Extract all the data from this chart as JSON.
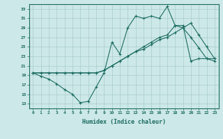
{
  "xlabel": "Humidex (Indice chaleur)",
  "bg_color": "#cde8e8",
  "grid_color": "#a8cccc",
  "line_color": "#1a6b60",
  "xlim": [
    -0.5,
    23.5
  ],
  "ylim": [
    12,
    34
  ],
  "yticks": [
    13,
    15,
    17,
    19,
    21,
    23,
    25,
    27,
    29,
    31,
    33
  ],
  "xticks": [
    0,
    1,
    2,
    3,
    4,
    5,
    6,
    7,
    8,
    9,
    10,
    11,
    12,
    13,
    14,
    15,
    16,
    17,
    18,
    19,
    20,
    21,
    22,
    23
  ],
  "line1_x": [
    0,
    1,
    2,
    3,
    4,
    5,
    6,
    7,
    8,
    9,
    10,
    11,
    12,
    13,
    14,
    15,
    16,
    17,
    18,
    19,
    20,
    21,
    22,
    23
  ],
  "line1_y": [
    19.5,
    18.8,
    18.2,
    17.2,
    16.0,
    15.0,
    13.2,
    13.5,
    16.5,
    19.5,
    26.0,
    23.5,
    29.0,
    31.5,
    31.0,
    31.5,
    31.0,
    33.5,
    29.5,
    29.0,
    27.0,
    24.8,
    22.5,
    22.0
  ],
  "line2_x": [
    0,
    1,
    2,
    3,
    4,
    5,
    6,
    7,
    8,
    9,
    10,
    11,
    12,
    13,
    14,
    15,
    16,
    17,
    18,
    19,
    20,
    21,
    22,
    23
  ],
  "line2_y": [
    19.5,
    19.5,
    19.5,
    19.5,
    19.5,
    19.5,
    19.5,
    19.5,
    19.5,
    20.0,
    21.0,
    22.0,
    23.0,
    24.0,
    25.0,
    26.0,
    27.0,
    27.5,
    29.5,
    29.5,
    22.0,
    22.5,
    22.5,
    22.5
  ],
  "line3_x": [
    0,
    1,
    2,
    3,
    4,
    5,
    6,
    7,
    8,
    9,
    10,
    11,
    12,
    13,
    14,
    15,
    16,
    17,
    18,
    19,
    20,
    21,
    22,
    23
  ],
  "line3_y": [
    19.5,
    19.5,
    19.5,
    19.5,
    19.5,
    19.5,
    19.5,
    19.5,
    19.5,
    20.0,
    21.0,
    22.0,
    23.0,
    24.0,
    24.5,
    25.5,
    26.5,
    27.0,
    28.0,
    29.0,
    30.0,
    27.5,
    25.0,
    22.5
  ]
}
